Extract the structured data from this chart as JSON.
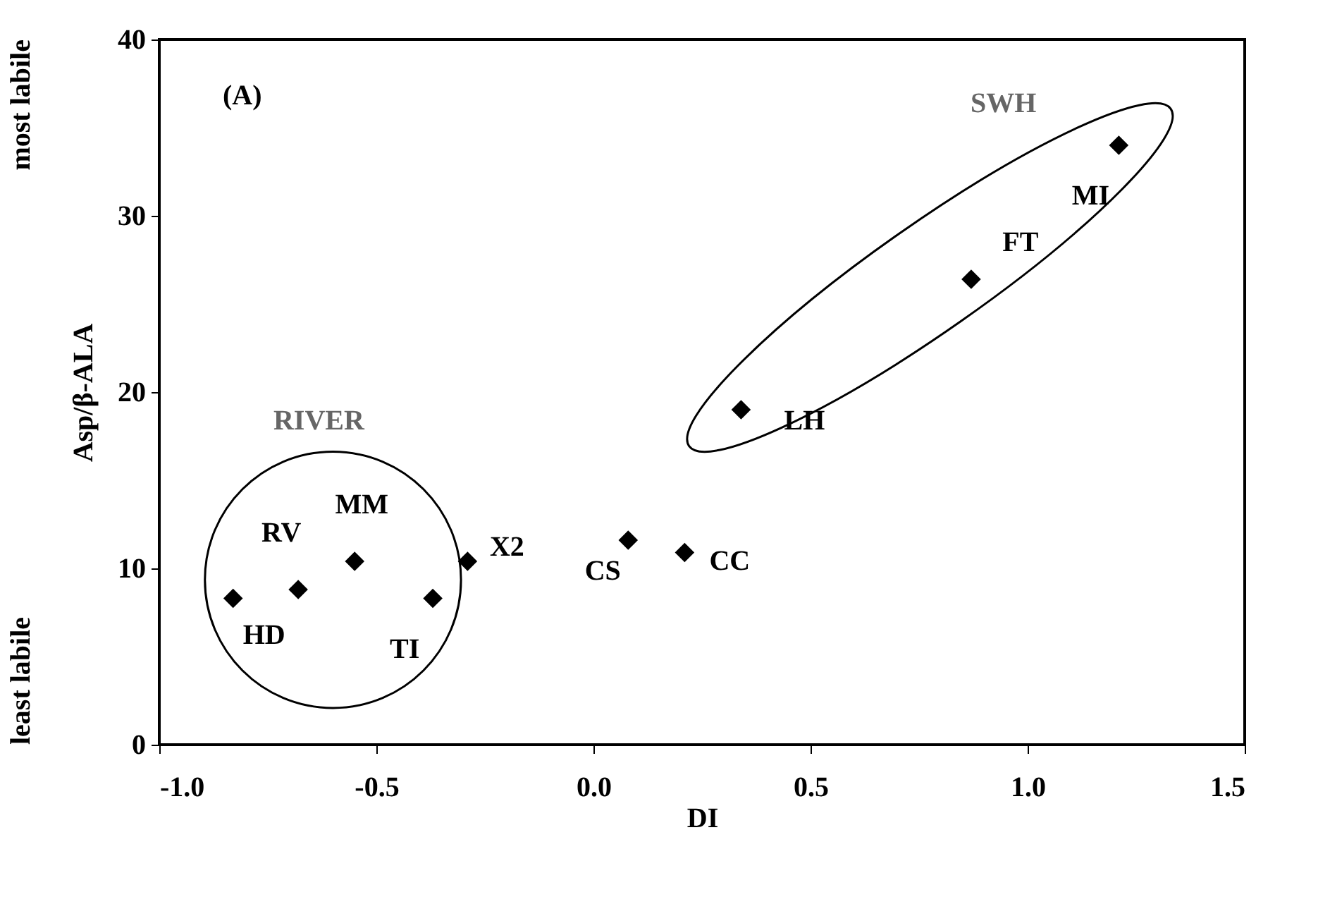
{
  "chart_data": {
    "type": "scatter",
    "xlabel": "DI",
    "ylabel": "Asp/β-ALA",
    "x": [
      -0.83,
      -0.68,
      -0.55,
      -0.37,
      -0.29,
      0.08,
      0.21,
      0.34,
      0.87,
      1.21
    ],
    "series": [
      {
        "color": "#000000",
        "values": [
          8.3,
          8.8,
          10.4,
          8.3,
          10.4,
          11.6,
          10.9,
          19.0,
          26.4,
          34.0
        ]
      }
    ],
    "xlim": [
      -1.0,
      1.5
    ],
    "xticks": [
      {
        "value": -1.0,
        "label": "-1.0"
      },
      {
        "value": -0.5,
        "label": "-0.5"
      },
      {
        "value": 0.0,
        "label": "0.0"
      },
      {
        "value": 0.5,
        "label": "0.5"
      },
      {
        "value": 1.0,
        "label": "1.0"
      },
      {
        "value": 1.5,
        "label": "1.5"
      }
    ],
    "ylim": [
      0,
      40
    ],
    "yticks": [
      0,
      10,
      20,
      30,
      40
    ],
    "marker": "diamond",
    "grid": false,
    "annotations": [
      "(A)",
      "RIVER",
      "SWH",
      "most labile",
      "least labile",
      {
        "text": "HD",
        "x": -0.83,
        "y": 8.3
      },
      {
        "text": "RV",
        "x": -0.68,
        "y": 8.8
      },
      {
        "text": "MM",
        "x": -0.55,
        "y": 10.4
      },
      {
        "text": "TI",
        "x": -0.37,
        "y": 8.3
      },
      {
        "text": "X2",
        "x": -0.29,
        "y": 10.4
      },
      {
        "text": "CS",
        "x": 0.08,
        "y": 11.6
      },
      {
        "text": "CC",
        "x": 0.21,
        "y": 10.9
      },
      {
        "text": "LH",
        "x": 0.34,
        "y": 19.0
      },
      {
        "text": "FT",
        "x": 0.87,
        "y": 26.4
      },
      {
        "text": "MI",
        "x": 1.21,
        "y": 34.0
      }
    ]
  }
}
